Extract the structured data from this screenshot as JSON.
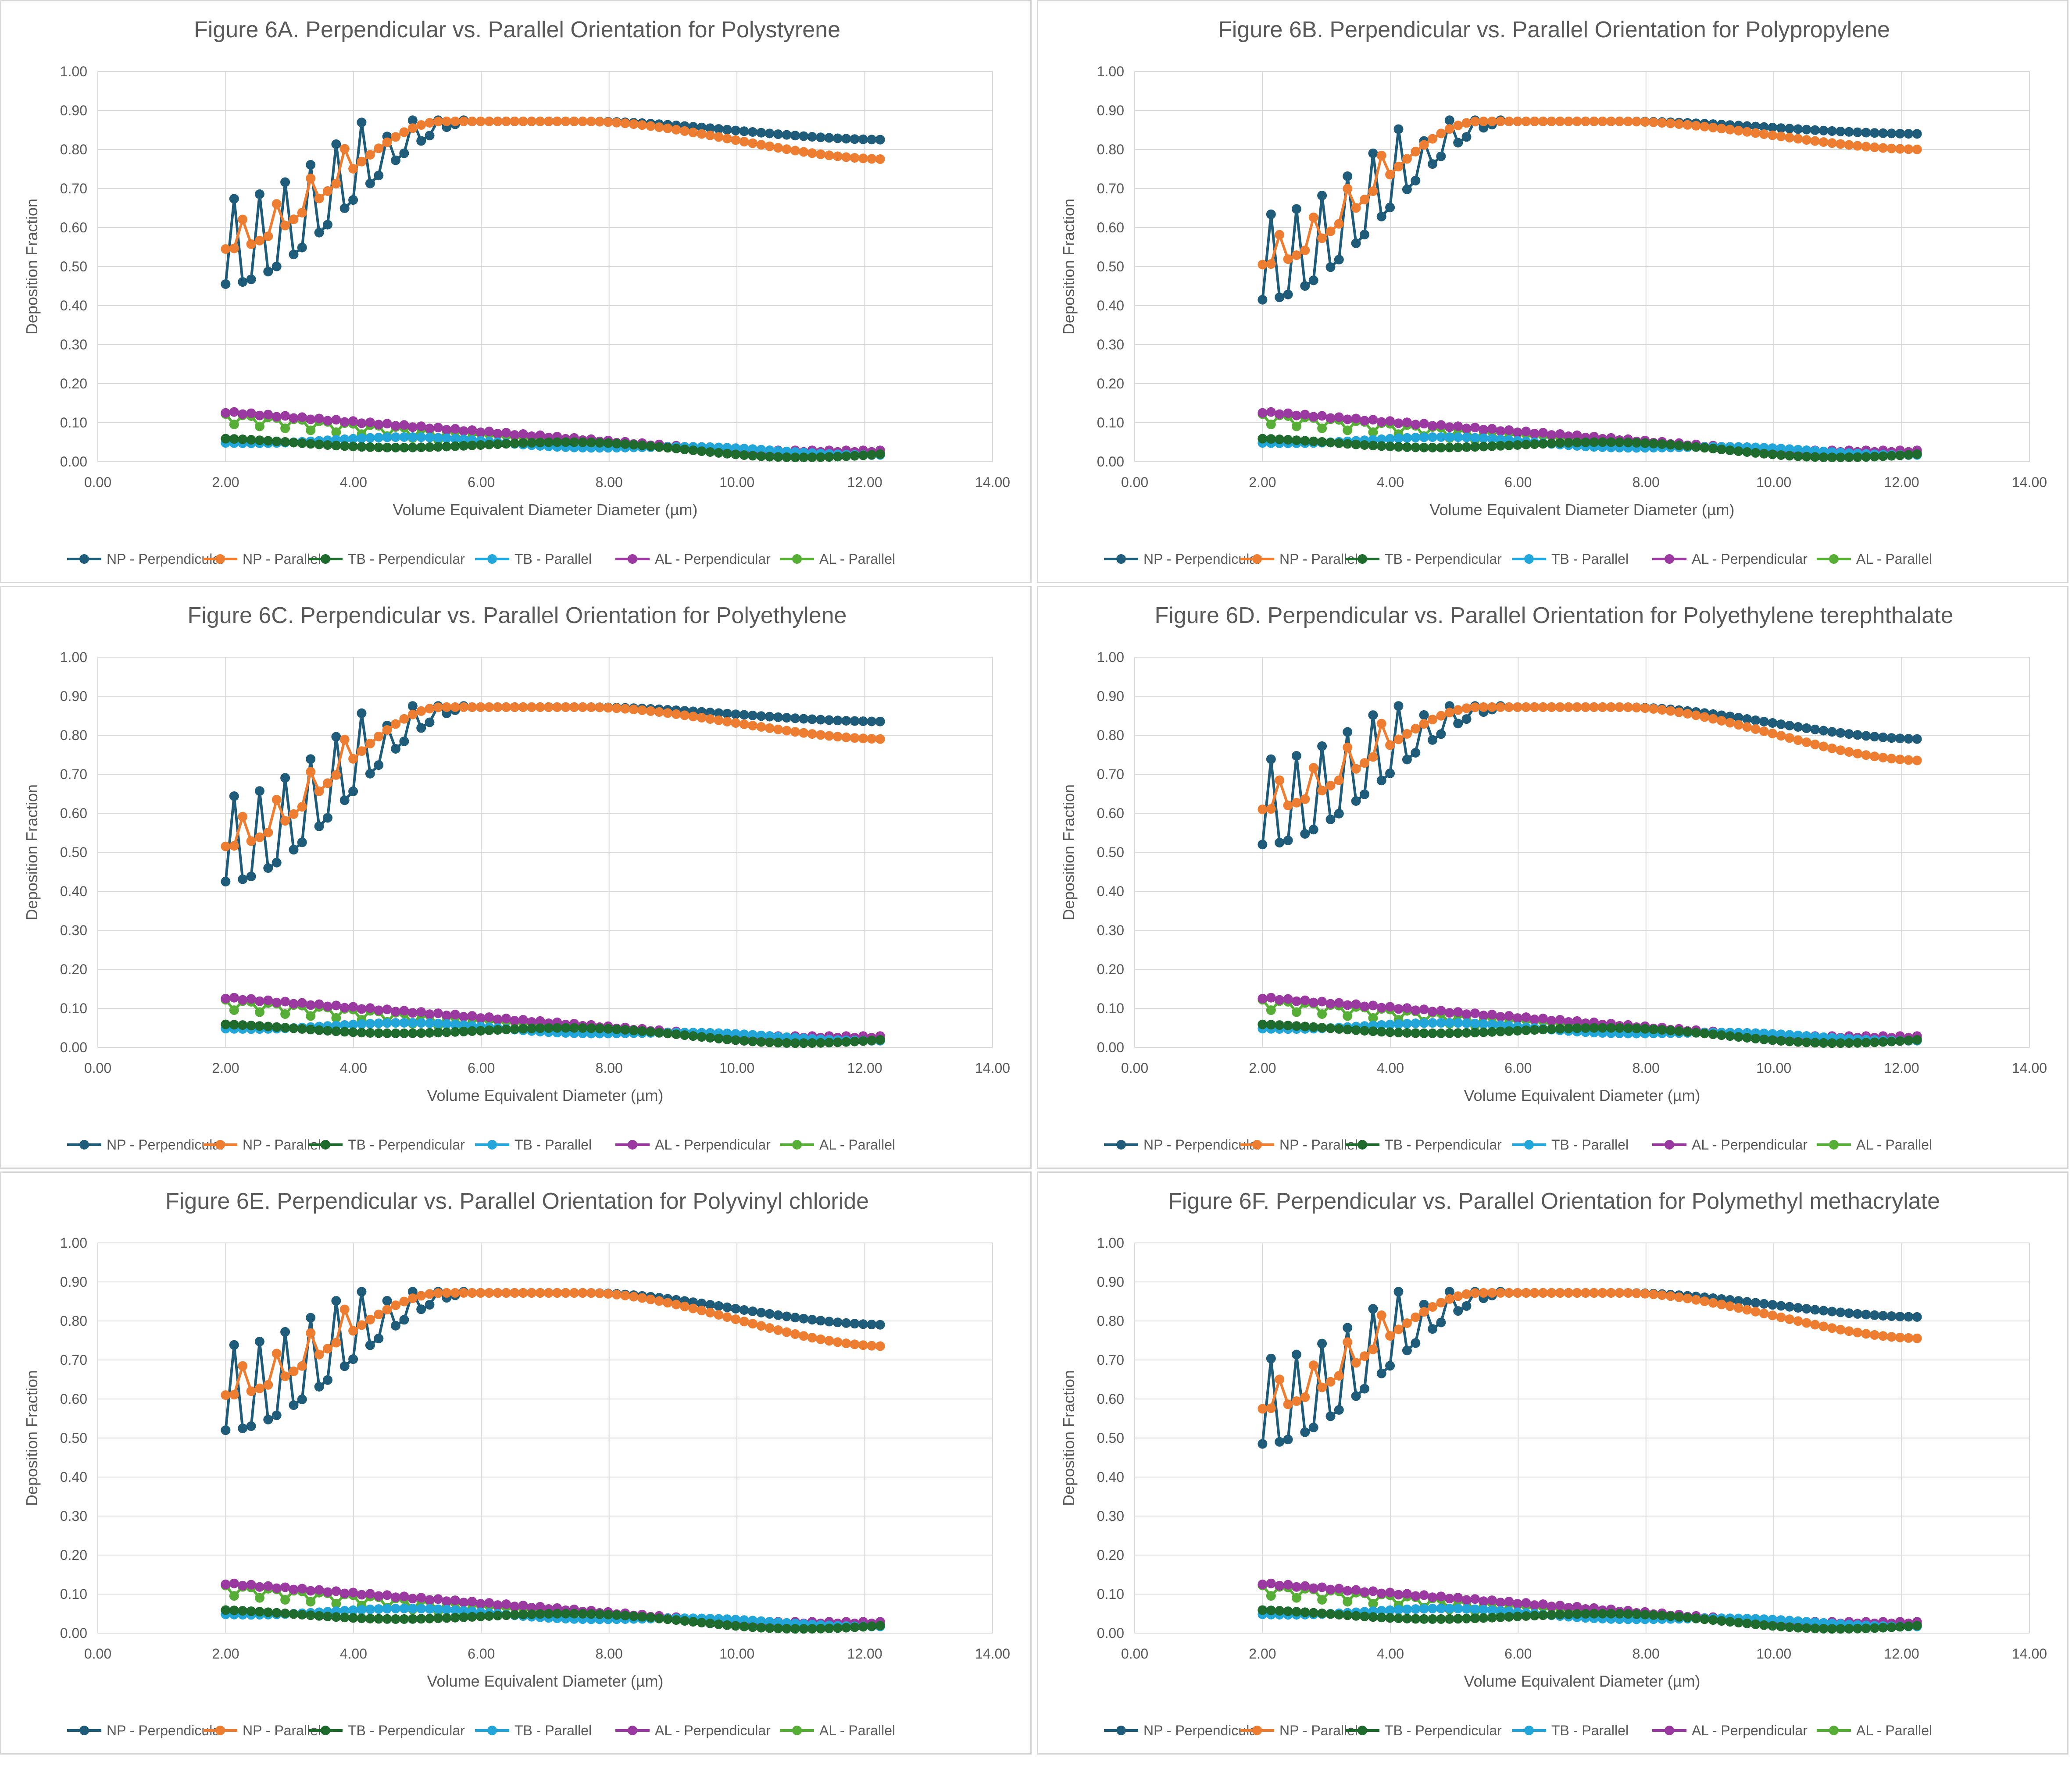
{
  "colors": {
    "NP - Perpendicular": "#1f5c7a",
    "NP - Parallel": "#ed7d31",
    "TB - Perpendicular": "#1e6b2d",
    "TB - Parallel": "#22a5d8",
    "AL - Perpendicular": "#9a3aa0",
    "AL - Parallel": "#57ae37",
    "grid": "#d9d9d9",
    "text": "#595959"
  },
  "chart_data": [
    {
      "type": "line",
      "title": "Figure 6A. Perpendicular vs. Parallel Orientation for Polystyrene",
      "xlabel": "Volume Equivalent Diameter Diameter (µm)",
      "ylabel": "Deposition Fraction",
      "xlim": [
        0,
        14
      ],
      "ylim": [
        0,
        1
      ],
      "x_ticks": [
        "0.00",
        "2.00",
        "4.00",
        "6.00",
        "8.00",
        "10.00",
        "12.00",
        "14.00"
      ],
      "y_ticks": [
        "0.00",
        "0.10",
        "0.20",
        "0.30",
        "0.40",
        "0.50",
        "0.60",
        "0.70",
        "0.80",
        "0.90",
        "1.00"
      ],
      "grid": true,
      "legend": "bottom",
      "profile": {
        "np_perp_min": 0.455,
        "np_par_min": 0.545,
        "np_perp_end": 0.825,
        "np_par_end": 0.775
      },
      "series": [
        {
          "name": "NP - Perpendicular"
        },
        {
          "name": "NP - Parallel"
        },
        {
          "name": "TB - Perpendicular"
        },
        {
          "name": "TB - Parallel"
        },
        {
          "name": "AL - Perpendicular"
        },
        {
          "name": "AL - Parallel"
        }
      ]
    },
    {
      "type": "line",
      "title": "Figure 6B. Perpendicular vs. Parallel Orientation for Polypropylene",
      "xlabel": "Volume Equivalent Diameter Diameter (µm)",
      "ylabel": "Deposition Fraction",
      "xlim": [
        0,
        14
      ],
      "ylim": [
        0,
        1
      ],
      "x_ticks": [
        "0.00",
        "2.00",
        "4.00",
        "6.00",
        "8.00",
        "10.00",
        "12.00",
        "14.00"
      ],
      "y_ticks": [
        "0.00",
        "0.10",
        "0.20",
        "0.30",
        "0.40",
        "0.50",
        "0.60",
        "0.70",
        "0.80",
        "0.90",
        "1.00"
      ],
      "grid": true,
      "legend": "bottom",
      "profile": {
        "np_perp_min": 0.415,
        "np_par_min": 0.505,
        "np_perp_end": 0.84,
        "np_par_end": 0.8
      },
      "series": [
        {
          "name": "NP - Perpendicular"
        },
        {
          "name": "NP - Parallel"
        },
        {
          "name": "TB - Perpendicular"
        },
        {
          "name": "TB - Parallel"
        },
        {
          "name": "AL - Perpendicular"
        },
        {
          "name": "AL - Parallel"
        }
      ]
    },
    {
      "type": "line",
      "title": "Figure 6C. Perpendicular vs. Parallel Orientation for Polyethylene",
      "xlabel": "Volume Equivalent Diameter (µm)",
      "ylabel": "Deposition Fraction",
      "xlim": [
        0,
        14
      ],
      "ylim": [
        0,
        1
      ],
      "x_ticks": [
        "0.00",
        "2.00",
        "4.00",
        "6.00",
        "8.00",
        "10.00",
        "12.00",
        "14.00"
      ],
      "y_ticks": [
        "0.00",
        "0.10",
        "0.20",
        "0.30",
        "0.40",
        "0.50",
        "0.60",
        "0.70",
        "0.80",
        "0.90",
        "1.00"
      ],
      "grid": true,
      "legend": "bottom",
      "profile": {
        "np_perp_min": 0.425,
        "np_par_min": 0.515,
        "np_perp_end": 0.835,
        "np_par_end": 0.79
      },
      "series": [
        {
          "name": "NP - Perpendicular"
        },
        {
          "name": "NP - Parallel"
        },
        {
          "name": "TB - Perpendicular"
        },
        {
          "name": "TB - Parallel"
        },
        {
          "name": "AL - Perpendicular"
        },
        {
          "name": "AL - Parallel"
        }
      ]
    },
    {
      "type": "line",
      "title": "Figure 6D. Perpendicular vs. Parallel Orientation for Polyethylene terephthalate",
      "xlabel": "Volume Equivalent Diameter (µm)",
      "ylabel": "Deposition Fraction",
      "xlim": [
        0,
        14
      ],
      "ylim": [
        0,
        1
      ],
      "x_ticks": [
        "0.00",
        "2.00",
        "4.00",
        "6.00",
        "8.00",
        "10.00",
        "12.00",
        "14.00"
      ],
      "y_ticks": [
        "0.00",
        "0.10",
        "0.20",
        "0.30",
        "0.40",
        "0.50",
        "0.60",
        "0.70",
        "0.80",
        "0.90",
        "1.00"
      ],
      "grid": true,
      "legend": "bottom",
      "profile": {
        "np_perp_min": 0.52,
        "np_par_min": 0.61,
        "np_perp_end": 0.79,
        "np_par_end": 0.735
      },
      "series": [
        {
          "name": "NP - Perpendicular"
        },
        {
          "name": "NP - Parallel"
        },
        {
          "name": "TB - Perpendicular"
        },
        {
          "name": "TB - Parallel"
        },
        {
          "name": "AL - Perpendicular"
        },
        {
          "name": "AL - Parallel"
        }
      ]
    },
    {
      "type": "line",
      "title": "Figure 6E. Perpendicular vs. Parallel Orientation for Polyvinyl chloride",
      "xlabel": "Volume Equivalent Diameter (µm)",
      "ylabel": "Deposition Fraction",
      "xlim": [
        0,
        14
      ],
      "ylim": [
        0,
        1
      ],
      "x_ticks": [
        "0.00",
        "2.00",
        "4.00",
        "6.00",
        "8.00",
        "10.00",
        "12.00",
        "14.00"
      ],
      "y_ticks": [
        "0.00",
        "0.10",
        "0.20",
        "0.30",
        "0.40",
        "0.50",
        "0.60",
        "0.70",
        "0.80",
        "0.90",
        "1.00"
      ],
      "grid": true,
      "legend": "bottom",
      "profile": {
        "np_perp_min": 0.52,
        "np_par_min": 0.61,
        "np_perp_end": 0.79,
        "np_par_end": 0.735
      },
      "series": [
        {
          "name": "NP - Perpendicular"
        },
        {
          "name": "NP - Parallel"
        },
        {
          "name": "TB - Perpendicular"
        },
        {
          "name": "TB - Parallel"
        },
        {
          "name": "AL - Perpendicular"
        },
        {
          "name": "AL - Parallel"
        }
      ]
    },
    {
      "type": "line",
      "title": "Figure 6F. Perpendicular vs. Parallel Orientation for Polymethyl methacrylate",
      "xlabel": "Volume Equivalent Diameter (µm)",
      "ylabel": "Deposition Fraction",
      "xlim": [
        0,
        14
      ],
      "ylim": [
        0,
        1
      ],
      "x_ticks": [
        "0.00",
        "2.00",
        "4.00",
        "6.00",
        "8.00",
        "10.00",
        "12.00",
        "14.00"
      ],
      "y_ticks": [
        "0.00",
        "0.10",
        "0.20",
        "0.30",
        "0.40",
        "0.50",
        "0.60",
        "0.70",
        "0.80",
        "0.90",
        "1.00"
      ],
      "grid": true,
      "legend": "bottom",
      "profile": {
        "np_perp_min": 0.485,
        "np_par_min": 0.575,
        "np_perp_end": 0.81,
        "np_par_end": 0.755
      },
      "series": [
        {
          "name": "NP - Perpendicular"
        },
        {
          "name": "NP - Parallel"
        },
        {
          "name": "TB - Perpendicular"
        },
        {
          "name": "TB - Parallel"
        },
        {
          "name": "AL - Perpendicular"
        },
        {
          "name": "AL - Parallel"
        }
      ]
    }
  ]
}
